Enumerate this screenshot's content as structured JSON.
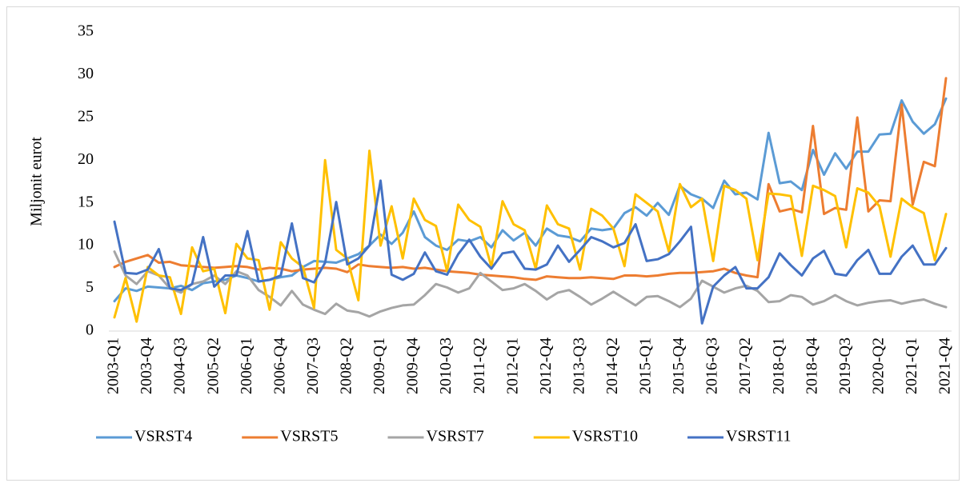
{
  "chart_data": {
    "type": "line",
    "y_label": "Miljonit eurot",
    "categories": [
      "2003-Q1",
      null,
      null,
      "2003-Q4",
      null,
      null,
      "2004-Q3",
      null,
      null,
      "2005-Q2",
      null,
      null,
      "2006-Q1",
      null,
      null,
      "2006-Q4",
      null,
      null,
      "2007-Q3",
      null,
      null,
      "2008-Q2",
      null,
      null,
      "2009-Q1",
      null,
      null,
      "2009-Q4",
      null,
      null,
      "2010-Q3",
      null,
      null,
      "2011-Q2",
      null,
      null,
      "2012-Q1",
      null,
      null,
      "2012-Q4",
      null,
      null,
      "2013-Q3",
      null,
      null,
      "2014-Q2",
      null,
      null,
      "2015-Q1",
      null,
      null,
      "2015-Q4",
      null,
      null,
      "2016-Q3",
      null,
      null,
      "2017-Q2",
      null,
      null,
      "2018-Q1",
      null,
      null,
      "2018-Q4",
      null,
      null,
      "2019-Q3",
      null,
      null,
      "2020-Q2",
      null,
      null,
      "2021-Q1",
      null,
      null,
      "2021-Q4"
    ],
    "ylim": [
      0,
      35
    ],
    "yticks": [
      0,
      5,
      10,
      15,
      20,
      25,
      30,
      35
    ],
    "grid": false,
    "legend": "bottom",
    "series": [
      {
        "name": "VSRST4",
        "color": "#5b9bd5",
        "values": [
          3.5,
          5.0,
          4.7,
          5.2,
          5.1,
          5.0,
          5.3,
          4.8,
          5.6,
          5.8,
          6.0,
          6.5,
          6.2,
          5.8,
          6.0,
          6.3,
          6.5,
          7.5,
          8.2,
          8.1,
          8.0,
          8.5,
          9.0,
          10.0,
          11.3,
          10.2,
          11.5,
          14.0,
          11.0,
          10.0,
          9.5,
          10.7,
          10.5,
          11.0,
          9.8,
          11.8,
          10.6,
          11.5,
          10.0,
          12.0,
          11.2,
          11.0,
          10.5,
          12.0,
          11.8,
          12.0,
          13.8,
          14.5,
          13.5,
          15.0,
          13.6,
          17.0,
          16.0,
          15.5,
          14.4,
          17.6,
          16.0,
          16.2,
          15.4,
          23.2,
          17.3,
          17.5,
          16.5,
          21.2,
          18.3,
          20.8,
          19.0,
          21.0,
          21.0,
          23.0,
          23.1,
          27.0,
          24.5,
          23.1,
          24.2,
          27.2
        ]
      },
      {
        "name": "VSRST5",
        "color": "#ed7d31",
        "values": [
          7.5,
          8.1,
          8.5,
          8.9,
          8.0,
          8.1,
          7.7,
          7.6,
          7.5,
          7.4,
          7.5,
          7.6,
          7.5,
          7.2,
          7.4,
          7.3,
          7.0,
          7.2,
          7.3,
          7.4,
          7.3,
          6.9,
          7.8,
          7.6,
          7.5,
          7.4,
          7.5,
          7.3,
          7.4,
          7.2,
          7.0,
          6.9,
          6.8,
          6.6,
          6.5,
          6.4,
          6.3,
          6.1,
          6.0,
          6.4,
          6.3,
          6.2,
          6.2,
          6.3,
          6.2,
          6.1,
          6.5,
          6.5,
          6.4,
          6.5,
          6.7,
          6.8,
          6.8,
          6.9,
          7.0,
          7.3,
          6.8,
          6.5,
          6.3,
          17.2,
          14.0,
          14.3,
          13.9,
          24.0,
          13.7,
          14.4,
          14.2,
          25.0,
          14.0,
          15.3,
          15.2,
          26.5,
          14.8,
          19.8,
          19.3,
          29.6
        ]
      },
      {
        "name": "VSRST7",
        "color": "#a5a5a5",
        "values": [
          9.3,
          6.5,
          5.5,
          7.0,
          6.5,
          5.0,
          4.5,
          5.5,
          5.8,
          6.5,
          5.5,
          7.0,
          6.5,
          4.8,
          4.0,
          3.0,
          4.7,
          3.1,
          2.5,
          2.0,
          3.2,
          2.4,
          2.2,
          1.7,
          2.3,
          2.7,
          3.0,
          3.1,
          4.2,
          5.5,
          5.1,
          4.5,
          5.0,
          6.8,
          5.8,
          4.8,
          5.0,
          5.5,
          4.7,
          3.7,
          4.5,
          4.8,
          4.0,
          3.1,
          3.8,
          4.6,
          3.8,
          3.0,
          4.0,
          4.1,
          3.5,
          2.8,
          3.8,
          5.9,
          5.2,
          4.5,
          5.0,
          5.3,
          4.7,
          3.4,
          3.5,
          4.2,
          4.0,
          3.1,
          3.5,
          4.2,
          3.5,
          3.0,
          3.3,
          3.5,
          3.6,
          3.2,
          3.5,
          3.7,
          3.2,
          2.8
        ]
      },
      {
        "name": "VSRST10",
        "color": "#ffc000",
        "values": [
          1.6,
          6.2,
          1.1,
          7.5,
          6.5,
          6.3,
          2.0,
          9.8,
          7.0,
          7.3,
          2.1,
          10.2,
          8.5,
          8.3,
          2.5,
          10.4,
          8.5,
          7.5,
          2.7,
          20.0,
          9.5,
          8.5,
          3.6,
          21.1,
          10.0,
          14.6,
          8.5,
          15.5,
          13.0,
          12.3,
          7.0,
          14.8,
          13.0,
          12.2,
          7.5,
          15.2,
          12.5,
          11.8,
          7.3,
          14.7,
          12.5,
          12.0,
          7.2,
          14.3,
          13.5,
          12.0,
          7.6,
          16.0,
          15.0,
          14.0,
          9.3,
          17.2,
          14.5,
          15.5,
          8.2,
          17.0,
          16.5,
          15.5,
          8.3,
          16.1,
          16.0,
          15.8,
          8.8,
          17.0,
          16.5,
          15.8,
          9.8,
          16.7,
          16.2,
          14.6,
          8.7,
          15.5,
          14.5,
          13.8,
          8.3,
          13.7
        ]
      },
      {
        "name": "VSRST11",
        "color": "#4472c4",
        "values": [
          12.8,
          6.8,
          6.7,
          7.2,
          9.6,
          5.0,
          4.8,
          5.5,
          11.0,
          5.2,
          6.5,
          6.5,
          11.7,
          5.8,
          6.0,
          6.5,
          12.6,
          6.2,
          5.7,
          8.0,
          15.1,
          7.8,
          8.5,
          10.0,
          17.6,
          6.6,
          6.0,
          6.7,
          9.2,
          7.0,
          6.6,
          9.0,
          10.7,
          8.7,
          7.3,
          9.1,
          9.3,
          7.3,
          7.2,
          7.8,
          10.0,
          8.1,
          9.5,
          11.0,
          10.5,
          9.8,
          10.3,
          12.5,
          8.2,
          8.4,
          9.0,
          10.5,
          12.2,
          0.9,
          5.2,
          6.5,
          7.5,
          5.0,
          5.0,
          6.3,
          9.1,
          7.7,
          6.5,
          8.5,
          9.4,
          6.7,
          6.5,
          8.3,
          9.5,
          6.7,
          6.7,
          8.7,
          10.0,
          7.8,
          7.8,
          9.7
        ]
      }
    ]
  }
}
